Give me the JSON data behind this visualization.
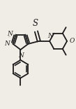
{
  "background_color": "#f0ede6",
  "line_color": "#1a1a1a",
  "line_width": 1.3,
  "font_size": 6.5,
  "figsize": [
    1.09,
    1.56
  ],
  "dpi": 100,
  "xlim": [
    0,
    109
  ],
  "ylim": [
    0,
    156
  ]
}
